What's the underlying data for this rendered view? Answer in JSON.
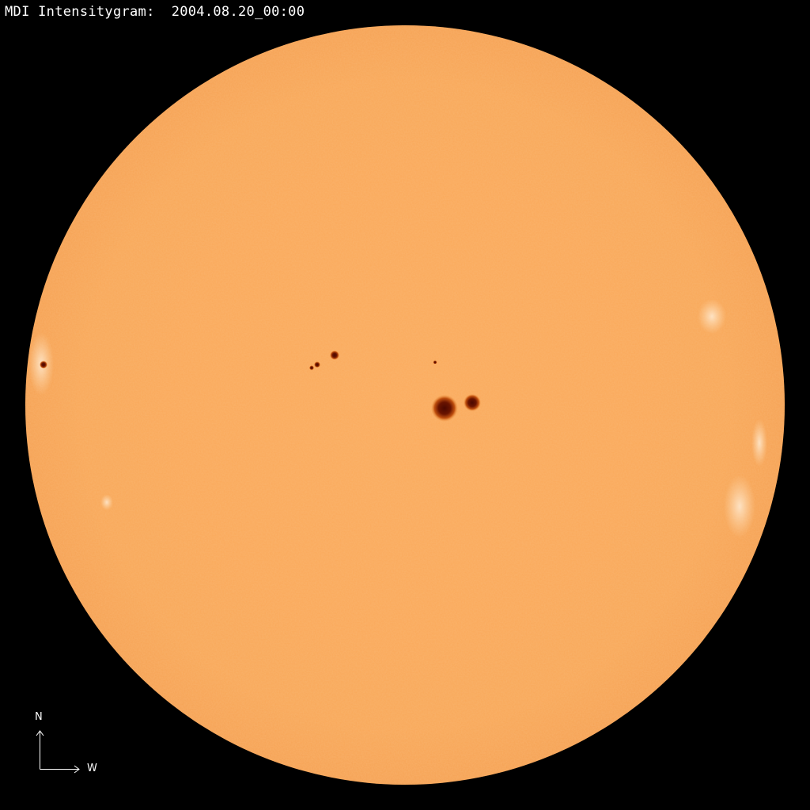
{
  "title": "MDI Intensitygram:  2004.08.20_00:00",
  "compass": {
    "north": "N",
    "west": "W"
  },
  "colors": {
    "background": "#000000",
    "disk": "#f9a85a",
    "limb": "#f4a050",
    "sunspot_umbra": "#5a0f00",
    "sunspot_penumbra": "#c0500f",
    "text": "#ffffff"
  }
}
